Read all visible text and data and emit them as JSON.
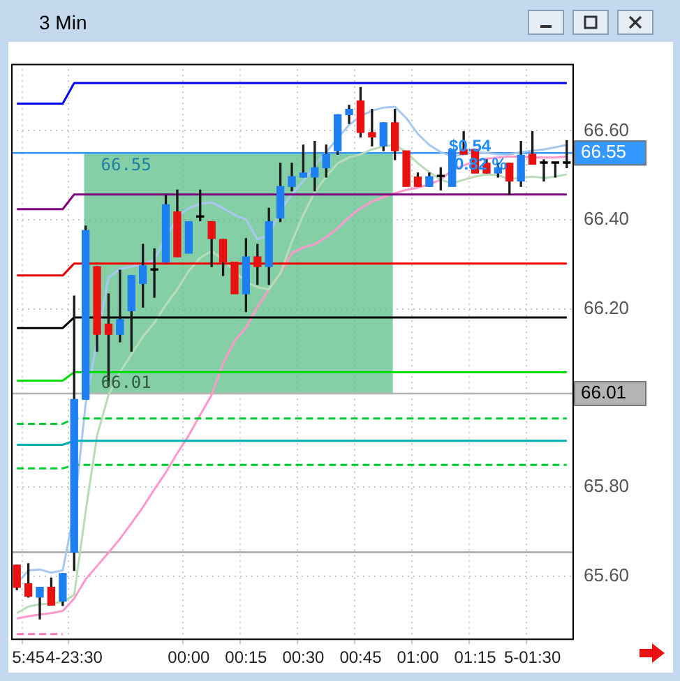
{
  "chart_data": {
    "type": "candlestick",
    "title": "3 Min",
    "categories": [
      null,
      "5:45",
      null,
      null,
      null,
      "4-23:30",
      null,
      null,
      null,
      null,
      null,
      null,
      null,
      null,
      null,
      "00:00",
      null,
      null,
      null,
      null,
      "00:15",
      null,
      null,
      null,
      null,
      "00:30",
      null,
      null,
      null,
      null,
      "00:45",
      null,
      null,
      null,
      null,
      "01:00",
      null,
      null,
      null,
      null,
      "01:15",
      null,
      null,
      null,
      null,
      "5-01:30",
      null,
      null,
      null
    ],
    "ohlc": [
      [
        65.625,
        65.625,
        65.57,
        65.575
      ],
      [
        65.583,
        65.628,
        65.553,
        65.555
      ],
      [
        65.553,
        65.575,
        65.504,
        65.575
      ],
      [
        65.575,
        65.596,
        65.535,
        65.535
      ],
      [
        65.544,
        65.606,
        65.534,
        65.606
      ],
      [
        65.654,
        66.229,
        65.613,
        65.997
      ],
      [
        65.997,
        66.386,
        65.997,
        66.376
      ],
      [
        66.295,
        66.295,
        66.105,
        66.143
      ],
      [
        66.166,
        66.234,
        66.027,
        66.143
      ],
      [
        66.143,
        66.287,
        66.126,
        66.176
      ],
      [
        66.196,
        66.275,
        66.105,
        66.275
      ],
      [
        66.257,
        66.345,
        66.204,
        66.297
      ],
      [
        66.287,
        66.335,
        66.226,
        66.287
      ],
      [
        66.305,
        66.455,
        66.305,
        66.434
      ],
      [
        66.418,
        66.467,
        66.317,
        66.317
      ],
      [
        66.325,
        66.396,
        66.325,
        66.396
      ],
      [
        66.406,
        66.467,
        66.398,
        66.406
      ],
      [
        66.396,
        66.396,
        66.295,
        66.358
      ],
      [
        66.356,
        66.356,
        66.275,
        66.305
      ],
      [
        66.305,
        66.305,
        66.234,
        66.234
      ],
      [
        66.234,
        66.358,
        66.194,
        66.317
      ],
      [
        66.317,
        66.345,
        66.255,
        66.295
      ],
      [
        66.295,
        66.426,
        66.255,
        66.396
      ],
      [
        66.404,
        66.527,
        66.396,
        66.475
      ],
      [
        66.475,
        66.527,
        66.465,
        66.497
      ],
      [
        66.496,
        66.568,
        66.496,
        66.505
      ],
      [
        66.496,
        66.576,
        66.465,
        66.517
      ],
      [
        66.517,
        66.568,
        66.496,
        66.547
      ],
      [
        66.555,
        66.636,
        66.547,
        66.636
      ],
      [
        66.636,
        66.657,
        66.616,
        66.648
      ],
      [
        66.667,
        66.697,
        66.586,
        66.596
      ],
      [
        66.596,
        66.648,
        66.566,
        66.586
      ],
      [
        66.566,
        66.618,
        66.555,
        66.618
      ],
      [
        66.618,
        66.648,
        66.535,
        66.555
      ],
      [
        66.555,
        66.555,
        66.475,
        66.475
      ],
      [
        66.496,
        66.505,
        66.475,
        66.475
      ],
      [
        66.475,
        66.505,
        66.475,
        66.497
      ],
      [
        66.497,
        66.517,
        66.467,
        66.497
      ],
      [
        66.475,
        66.558,
        66.475,
        66.558
      ],
      [
        66.558,
        66.598,
        66.547,
        66.547
      ],
      [
        66.558,
        66.558,
        66.505,
        66.505
      ],
      [
        66.527,
        66.535,
        66.505,
        66.505
      ],
      [
        66.505,
        66.527,
        66.496,
        66.517
      ],
      [
        66.527,
        66.527,
        66.457,
        66.487
      ],
      [
        66.487,
        66.576,
        66.475,
        66.545
      ],
      [
        66.547,
        66.598,
        66.525,
        66.525
      ],
      [
        66.527,
        66.535,
        66.487,
        66.527
      ],
      [
        66.527,
        66.527,
        66.496,
        66.527
      ],
      [
        66.527,
        66.578,
        66.517,
        66.527
      ]
    ],
    "colors": [
      "#e81010",
      "#e81010",
      "#1e7ff0",
      "#e81010",
      "#1e7ff0",
      "#1e7ff0",
      "#1e7ff0",
      "#e81010",
      "#e81010",
      "#1e7ff0",
      "#1e7ff0",
      "#1e7ff0",
      "#000000",
      "#1e7ff0",
      "#e81010",
      "#1e7ff0",
      "#000000",
      "#e81010",
      "#e81010",
      "#e81010",
      "#1e7ff0",
      "#e81010",
      "#1e7ff0",
      "#1e7ff0",
      "#1e7ff0",
      "#1e7ff0",
      "#1e7ff0",
      "#1e7ff0",
      "#1e7ff0",
      "#1e7ff0",
      "#e81010",
      "#e81010",
      "#1e7ff0",
      "#e81010",
      "#e81010",
      "#e81010",
      "#1e7ff0",
      "#000000",
      "#1e7ff0",
      "#e81010",
      "#e81010",
      "#e81010",
      "#1e7ff0",
      "#e81010",
      "#1e7ff0",
      "#e81010",
      "#000000",
      "#000000",
      "#000000"
    ],
    "series": [
      {
        "type": "line",
        "color": "#0000ee",
        "values": [
          66.661,
          66.661,
          66.661,
          66.661,
          66.661,
          66.707,
          66.707,
          66.707,
          66.707,
          66.707,
          66.707,
          66.707,
          66.707,
          66.707,
          66.707,
          66.707,
          66.707,
          66.707,
          66.707,
          66.707,
          66.707,
          66.707,
          66.707,
          66.707,
          66.707,
          66.707,
          66.707,
          66.707,
          66.707,
          66.707,
          66.707,
          66.707,
          66.707,
          66.707,
          66.707,
          66.707,
          66.707,
          66.707,
          66.707,
          66.707,
          66.707,
          66.707,
          66.707,
          66.707,
          66.707,
          66.707,
          66.707,
          66.707,
          66.707
        ]
      },
      {
        "type": "line",
        "color": "#800080",
        "values": [
          66.424,
          66.424,
          66.424,
          66.424,
          66.424,
          66.457,
          66.457,
          66.457,
          66.457,
          66.457,
          66.457,
          66.457,
          66.457,
          66.457,
          66.457,
          66.457,
          66.457,
          66.457,
          66.457,
          66.457,
          66.457,
          66.457,
          66.457,
          66.457,
          66.457,
          66.457,
          66.457,
          66.457,
          66.457,
          66.457,
          66.457,
          66.457,
          66.457,
          66.457,
          66.457,
          66.457,
          66.457,
          66.457,
          66.457,
          66.457,
          66.457,
          66.457,
          66.457,
          66.457,
          66.457,
          66.457,
          66.457,
          66.457,
          66.457
        ]
      },
      {
        "type": "line",
        "color": "#ee0000",
        "values": [
          66.275,
          66.275,
          66.275,
          66.275,
          66.275,
          66.302,
          66.302,
          66.302,
          66.302,
          66.302,
          66.302,
          66.302,
          66.302,
          66.302,
          66.302,
          66.302,
          66.302,
          66.302,
          66.302,
          66.302,
          66.302,
          66.302,
          66.302,
          66.302,
          66.302,
          66.302,
          66.302,
          66.302,
          66.302,
          66.302,
          66.302,
          66.302,
          66.302,
          66.302,
          66.302,
          66.302,
          66.302,
          66.302,
          66.302,
          66.302,
          66.302,
          66.302,
          66.302,
          66.302,
          66.302,
          66.302,
          66.302,
          66.302,
          66.302
        ]
      },
      {
        "type": "line",
        "color": "#000000",
        "values": [
          66.157,
          66.157,
          66.157,
          66.157,
          66.157,
          66.181,
          66.181,
          66.181,
          66.181,
          66.181,
          66.181,
          66.181,
          66.181,
          66.181,
          66.181,
          66.181,
          66.181,
          66.181,
          66.181,
          66.181,
          66.181,
          66.181,
          66.181,
          66.181,
          66.181,
          66.181,
          66.181,
          66.181,
          66.181,
          66.181,
          66.181,
          66.181,
          66.181,
          66.181,
          66.181,
          66.181,
          66.181,
          66.181,
          66.181,
          66.181,
          66.181,
          66.181,
          66.181,
          66.181,
          66.181,
          66.181,
          66.181,
          66.181,
          66.181
        ]
      },
      {
        "type": "line",
        "color": "#00dd00",
        "values": [
          66.039,
          66.039,
          66.039,
          66.039,
          66.039,
          66.058,
          66.058,
          66.058,
          66.058,
          66.058,
          66.058,
          66.058,
          66.058,
          66.058,
          66.058,
          66.058,
          66.058,
          66.058,
          66.058,
          66.058,
          66.058,
          66.058,
          66.058,
          66.058,
          66.058,
          66.058,
          66.058,
          66.058,
          66.058,
          66.058,
          66.058,
          66.058,
          66.058,
          66.058,
          66.058,
          66.058,
          66.058,
          66.058,
          66.058,
          66.058,
          66.058,
          66.058,
          66.058,
          66.058,
          66.058,
          66.058,
          66.058,
          66.058,
          66.058
        ]
      },
      {
        "type": "line",
        "color": "#00cc33",
        "line_style": "dashed",
        "values": [
          65.942,
          65.942,
          65.942,
          65.942,
          65.942,
          65.954,
          65.954,
          65.954,
          65.954,
          65.954,
          65.954,
          65.954,
          65.954,
          65.954,
          65.954,
          65.954,
          65.954,
          65.954,
          65.954,
          65.954,
          65.954,
          65.954,
          65.954,
          65.954,
          65.954,
          65.954,
          65.954,
          65.954,
          65.954,
          65.954,
          65.954,
          65.954,
          65.954,
          65.954,
          65.954,
          65.954,
          65.954,
          65.954,
          65.954,
          65.954,
          65.954,
          65.954,
          65.954,
          65.954,
          65.954,
          65.954,
          65.954,
          65.954,
          65.954
        ]
      },
      {
        "type": "line",
        "color": "#00b0b0",
        "values": [
          65.895,
          65.895,
          65.895,
          65.895,
          65.895,
          65.904,
          65.904,
          65.904,
          65.904,
          65.904,
          65.904,
          65.904,
          65.904,
          65.904,
          65.904,
          65.904,
          65.904,
          65.904,
          65.904,
          65.904,
          65.904,
          65.904,
          65.904,
          65.904,
          65.904,
          65.904,
          65.904,
          65.904,
          65.904,
          65.904,
          65.904,
          65.904,
          65.904,
          65.904,
          65.904,
          65.904,
          65.904,
          65.904,
          65.904,
          65.904,
          65.904,
          65.904,
          65.904,
          65.904,
          65.904,
          65.904,
          65.904,
          65.904,
          65.904
        ]
      },
      {
        "type": "line",
        "color": "#00cc33",
        "line_style": "dashed",
        "values": [
          65.842,
          65.842,
          65.842,
          65.842,
          65.842,
          65.85,
          65.85,
          65.85,
          65.85,
          65.85,
          65.85,
          65.85,
          65.85,
          65.85,
          65.85,
          65.85,
          65.85,
          65.85,
          65.85,
          65.85,
          65.85,
          65.85,
          65.85,
          65.85,
          65.85,
          65.85,
          65.85,
          65.85,
          65.85,
          65.85,
          65.85,
          65.85,
          65.85,
          65.85,
          65.85,
          65.85,
          65.85,
          65.85,
          65.85,
          65.85,
          65.85,
          65.85,
          65.85,
          65.85,
          65.85,
          65.85,
          65.85,
          65.85,
          65.85
        ]
      },
      {
        "type": "line",
        "color": "#ff77bb",
        "line_style": "dashed",
        "values": [
          65.47,
          65.47,
          65.47,
          65.47,
          65.47,
          null,
          null,
          null,
          null,
          null,
          null,
          null,
          null,
          null,
          null,
          null,
          null,
          null,
          null,
          null,
          null,
          null,
          null,
          null,
          null,
          null,
          null,
          null,
          null,
          null,
          null,
          null,
          null,
          null,
          null,
          null,
          null,
          null,
          null,
          null,
          null,
          null,
          null,
          null,
          null,
          null,
          null,
          null,
          null
        ]
      },
      {
        "type": "line",
        "color": "#a8c8f0",
        "values": [
          65.583,
          65.613,
          65.615,
          65.608,
          65.613,
          65.745,
          65.987,
          null,
          66.27,
          66.29,
          66.295,
          66.3,
          66.31,
          66.361,
          66.406,
          66.426,
          66.436,
          66.439,
          66.426,
          66.411,
          66.401,
          66.356,
          66.366,
          66.421,
          66.457,
          66.487,
          66.522,
          66.552,
          66.583,
          66.613,
          66.633,
          66.645,
          66.652,
          66.654,
          66.628,
          66.593,
          66.568,
          66.552,
          66.542,
          66.547,
          66.552,
          66.55,
          66.547,
          66.547,
          66.552,
          66.555,
          66.558,
          66.563,
          66.568
        ]
      },
      {
        "type": "line",
        "color": "#b8dcb8",
        "values": [
          65.517,
          65.532,
          65.537,
          65.539,
          65.542,
          65.558,
          65.745,
          65.916,
          66.007,
          66.058,
          66.098,
          66.138,
          66.169,
          66.209,
          66.244,
          66.285,
          66.315,
          66.33,
          66.31,
          66.285,
          66.26,
          66.249,
          66.244,
          66.28,
          66.351,
          66.411,
          66.462,
          66.497,
          66.527,
          66.54,
          66.547,
          66.558,
          66.565,
          66.568,
          66.552,
          66.527,
          66.507,
          66.49,
          66.482,
          66.49,
          66.497,
          66.502,
          66.5,
          66.492,
          66.494,
          66.497,
          66.494,
          66.497,
          66.502
        ]
      },
      {
        "type": "line",
        "color": "#ff99cc",
        "values": [
          65.505,
          65.51,
          65.514,
          65.517,
          65.522,
          65.55,
          65.593,
          65.623,
          65.653,
          65.684,
          65.719,
          65.755,
          65.795,
          65.833,
          65.876,
          65.916,
          65.962,
          66.007,
          66.078,
          66.128,
          66.158,
          66.204,
          66.244,
          66.28,
          66.325,
          66.338,
          66.345,
          66.361,
          66.381,
          66.406,
          66.426,
          66.441,
          66.451,
          66.46,
          66.467,
          66.472,
          66.48,
          66.49,
          66.512,
          66.522,
          66.532,
          66.537,
          66.54,
          66.542,
          66.542,
          66.54,
          66.54,
          66.54,
          66.542
        ]
      }
    ],
    "ylim": [
      65.46,
      66.75
    ],
    "yticks": [
      {
        "value": 65.6,
        "label": "65.60"
      },
      {
        "value": 65.8,
        "label": "65.80"
      },
      {
        "value": 66.2,
        "label": "66.20"
      },
      {
        "value": 66.4,
        "label": "66.40"
      },
      {
        "value": 66.6,
        "label": "66.60"
      }
    ],
    "grid": true,
    "ref_lines": [
      {
        "axis": "y",
        "value": 66.55,
        "label": "66.55",
        "color": "#3399ff"
      },
      {
        "axis": "y",
        "value": 66.01,
        "label": "66.01",
        "color": "#b4b4b4"
      },
      {
        "axis": "y",
        "value": 65.654,
        "color": "#a0a0a0"
      }
    ],
    "bands": [
      {
        "axis": "y",
        "from": 66.01,
        "to": 66.55,
        "color": "#5cbf8a"
      }
    ],
    "annotations": [
      {
        "text": "66.55",
        "y": 66.55
      },
      {
        "text": "66.01",
        "y": 66.01
      },
      "$0.54",
      "0.82 %"
    ]
  }
}
